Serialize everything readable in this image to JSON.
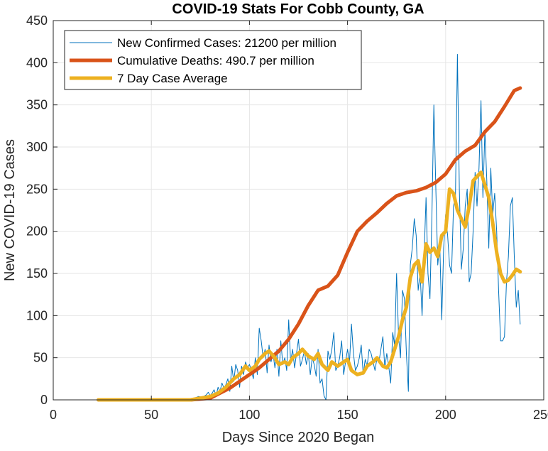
{
  "chart_data": {
    "type": "line",
    "title": "COVID-19 Stats For Cobb County, GA",
    "xlabel": "Days Since 2020 Began",
    "ylabel": "New COVID-19 Cases",
    "xlim": [
      0,
      250
    ],
    "ylim": [
      0,
      450
    ],
    "xticks": [
      0,
      50,
      100,
      150,
      200,
      250
    ],
    "yticks": [
      0,
      50,
      100,
      150,
      200,
      250,
      300,
      350,
      400,
      450
    ],
    "grid": true,
    "legend_position": "top-left",
    "colors": {
      "new_cases": "#0072BD",
      "deaths": "#D95319",
      "avg": "#EDB120",
      "grid": "#e6e6e6",
      "axis": "#262626"
    },
    "series": [
      {
        "key": "new_cases",
        "name": "New Confirmed Cases: 21200 per million",
        "x": [
          23,
          30,
          40,
          50,
          60,
          65,
          70,
          72,
          74,
          76,
          78,
          79,
          80,
          81,
          82,
          83,
          84,
          85,
          86,
          87,
          88,
          89,
          90,
          91,
          92,
          93,
          94,
          95,
          96,
          97,
          98,
          99,
          100,
          101,
          102,
          103,
          104,
          105,
          106,
          107,
          108,
          109,
          110,
          111,
          112,
          113,
          114,
          115,
          116,
          117,
          118,
          119,
          120,
          121,
          122,
          123,
          124,
          125,
          126,
          127,
          128,
          129,
          130,
          131,
          132,
          133,
          134,
          135,
          136,
          137,
          138,
          139,
          140,
          141,
          142,
          143,
          144,
          145,
          146,
          147,
          148,
          149,
          150,
          151,
          152,
          153,
          154,
          155,
          156,
          157,
          158,
          159,
          160,
          161,
          162,
          163,
          164,
          165,
          166,
          167,
          168,
          169,
          170,
          171,
          172,
          173,
          174,
          175,
          176,
          177,
          178,
          179,
          180,
          181,
          182,
          183,
          184,
          185,
          186,
          187,
          188,
          189,
          190,
          191,
          192,
          193,
          194,
          195,
          196,
          197,
          198,
          199,
          200,
          201,
          202,
          203,
          204,
          205,
          206,
          207,
          208,
          209,
          210,
          211,
          212,
          213,
          214,
          215,
          216,
          217,
          218,
          219,
          220,
          221,
          222,
          223,
          224,
          225,
          226,
          227,
          228,
          229,
          230,
          231,
          232,
          233,
          234,
          235,
          236,
          237,
          238
        ],
        "values": [
          0,
          0,
          0,
          0,
          0,
          0,
          1,
          2,
          4,
          3,
          6,
          9,
          5,
          8,
          12,
          5,
          15,
          10,
          20,
          14,
          18,
          25,
          10,
          40,
          22,
          42,
          35,
          15,
          40,
          30,
          45,
          38,
          42,
          35,
          25,
          50,
          30,
          85,
          70,
          50,
          60,
          32,
          65,
          45,
          55,
          38,
          60,
          28,
          70,
          42,
          50,
          35,
          95,
          45,
          60,
          38,
          55,
          72,
          40,
          48,
          58,
          42,
          55,
          30,
          50,
          42,
          28,
          60,
          20,
          25,
          5,
          0,
          58,
          48,
          60,
          80,
          35,
          40,
          50,
          70,
          30,
          45,
          60,
          45,
          90,
          55,
          35,
          40,
          50,
          65,
          30,
          48,
          40,
          60,
          55,
          45,
          35,
          50,
          45,
          60,
          75,
          38,
          55,
          40,
          20,
          80,
          65,
          150,
          75,
          50,
          130,
          120,
          55,
          10,
          160,
          180,
          215,
          195,
          130,
          150,
          100,
          170,
          240,
          150,
          120,
          220,
          350,
          250,
          160,
          185,
          95,
          180,
          220,
          195,
          160,
          150,
          230,
          240,
          410,
          250,
          155,
          180,
          230,
          250,
          140,
          150,
          200,
          270,
          230,
          275,
          355,
          240,
          320,
          260,
          180,
          275,
          220,
          245,
          200,
          130,
          70,
          70,
          75,
          140,
          170,
          230,
          240,
          170,
          110,
          130,
          90
        ]
      },
      {
        "key": "deaths",
        "name": "Cumulative Deaths: 490.7 per million",
        "x": [
          23,
          70,
          75,
          80,
          85,
          90,
          95,
          100,
          105,
          110,
          115,
          120,
          125,
          130,
          135,
          140,
          145,
          150,
          155,
          160,
          165,
          170,
          175,
          180,
          185,
          190,
          195,
          200,
          205,
          210,
          215,
          220,
          225,
          230,
          235,
          238
        ],
        "values": [
          0,
          0,
          1,
          2,
          8,
          14,
          22,
          30,
          38,
          48,
          58,
          72,
          90,
          112,
          130,
          135,
          148,
          175,
          200,
          212,
          222,
          233,
          242,
          246,
          248,
          252,
          258,
          268,
          285,
          295,
          302,
          318,
          330,
          348,
          367,
          370
        ]
      },
      {
        "key": "avg",
        "name": "7 Day Case Average",
        "x": [
          23,
          60,
          70,
          75,
          80,
          84,
          88,
          92,
          95,
          98,
          100,
          103,
          105,
          108,
          110,
          113,
          115,
          118,
          120,
          122,
          125,
          127,
          130,
          133,
          135,
          137,
          140,
          142,
          145,
          148,
          150,
          152,
          155,
          158,
          160,
          163,
          165,
          168,
          170,
          172,
          174,
          176,
          178,
          180,
          182,
          184,
          186,
          188,
          190,
          192,
          194,
          196,
          198,
          200,
          202,
          204,
          206,
          208,
          210,
          212,
          214,
          216,
          218,
          220,
          222,
          224,
          226,
          228,
          230,
          232,
          234,
          236,
          238
        ],
        "values": [
          0,
          0,
          0,
          2,
          4,
          8,
          15,
          25,
          30,
          40,
          35,
          40,
          48,
          55,
          58,
          50,
          42,
          45,
          42,
          50,
          55,
          60,
          52,
          48,
          55,
          42,
          35,
          45,
          40,
          45,
          48,
          35,
          30,
          32,
          40,
          45,
          50,
          40,
          38,
          45,
          60,
          75,
          95,
          110,
          145,
          160,
          165,
          140,
          185,
          175,
          180,
          170,
          195,
          200,
          250,
          245,
          225,
          215,
          205,
          230,
          260,
          265,
          270,
          255,
          240,
          210,
          175,
          150,
          140,
          142,
          148,
          155,
          152
        ]
      }
    ]
  }
}
